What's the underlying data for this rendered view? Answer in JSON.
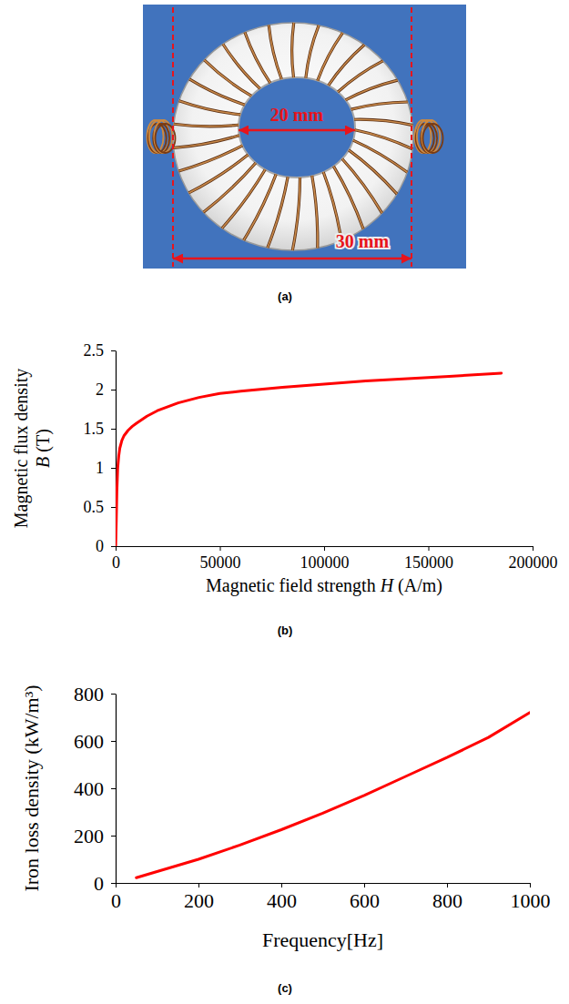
{
  "photo": {
    "caption": "(a)",
    "annotations": [
      "20 mm",
      "30 mm"
    ]
  },
  "chart_data": [
    {
      "type": "line",
      "caption": "(b)",
      "xlabel": "Magnetic field strength H (A/m)",
      "ylabel": [
        "Magnetic flux density",
        "B (T)"
      ],
      "x": [
        0,
        300,
        600,
        1000,
        1500,
        2000,
        3000,
        4000,
        6000,
        8000,
        10000,
        15000,
        20000,
        30000,
        40000,
        50000,
        60000,
        80000,
        100000,
        120000,
        140000,
        160000,
        185000
      ],
      "values": [
        0,
        0.3,
        0.7,
        1.0,
        1.15,
        1.25,
        1.35,
        1.41,
        1.48,
        1.53,
        1.57,
        1.66,
        1.73,
        1.83,
        1.9,
        1.95,
        1.98,
        2.03,
        2.07,
        2.11,
        2.14,
        2.17,
        2.21
      ],
      "color": "#ff0000",
      "xlim": [
        0,
        200000
      ],
      "ylim": [
        0,
        2.5
      ],
      "xticks": [
        0,
        50000,
        100000,
        150000,
        200000
      ],
      "yticks": [
        0,
        0.5,
        1,
        1.5,
        2,
        2.5
      ]
    },
    {
      "type": "line",
      "caption": "(c)",
      "xlabel": "Frequency[Hz]",
      "ylabel": "Iron loss density (kW/m³)",
      "x": [
        50,
        100,
        200,
        300,
        400,
        500,
        600,
        700,
        800,
        900,
        1000
      ],
      "values": [
        22,
        48,
        100,
        160,
        225,
        295,
        370,
        450,
        530,
        615,
        720
      ],
      "color": "#ff0000",
      "xlim": [
        0,
        1000
      ],
      "ylim": [
        0,
        800
      ],
      "xticks": [
        0,
        200,
        400,
        600,
        800,
        1000
      ],
      "yticks": [
        0,
        200,
        400,
        600,
        800
      ]
    }
  ]
}
